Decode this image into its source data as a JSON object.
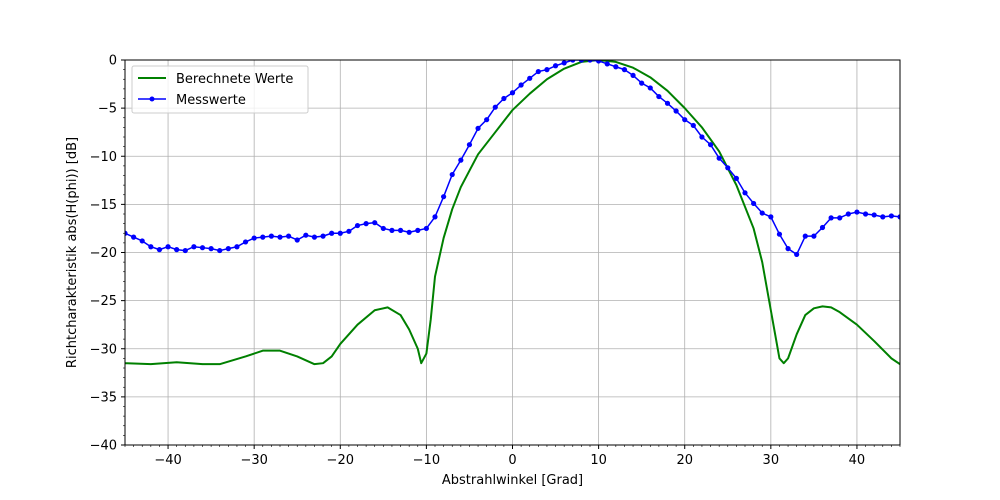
{
  "chart_data": {
    "type": "line",
    "title": "",
    "xlabel": "Abstrahlwinkel [Grad]",
    "ylabel": "Richtcharakteristik abs(H(phi)) [dB]",
    "xlim": [
      -45,
      45
    ],
    "ylim": [
      -40,
      0
    ],
    "xticks": [
      -40,
      -30,
      -20,
      -10,
      0,
      10,
      20,
      30,
      40
    ],
    "xtick_labels": [
      "−40",
      "−30",
      "−20",
      "−10",
      "0",
      "10",
      "20",
      "30",
      "40"
    ],
    "yticks": [
      0,
      -5,
      -10,
      -15,
      -20,
      -25,
      -30,
      -35,
      -40
    ],
    "ytick_labels": [
      "0",
      "−5",
      "−10",
      "−15",
      "−20",
      "−25",
      "−30",
      "−35",
      "−40"
    ],
    "grid": true,
    "legend_position": "top-left",
    "series": [
      {
        "name": "Berechnete Werte",
        "color": "#008000",
        "marker": "none",
        "x": [
          -45,
          -42,
          -39,
          -36,
          -34,
          -31,
          -29,
          -27,
          -25,
          -23,
          -22,
          -21,
          -20,
          -18,
          -16,
          -14.5,
          -13,
          -12,
          -11,
          -10.6,
          -10,
          -9.5,
          -9,
          -8,
          -7,
          -6,
          -5,
          -4,
          -2,
          0,
          2,
          4,
          6,
          8,
          10,
          12,
          14,
          16,
          18,
          20,
          22,
          24,
          26,
          28,
          29,
          30,
          30.5,
          31,
          31.5,
          32,
          33,
          34,
          35,
          36,
          37,
          38,
          40,
          42,
          44,
          45
        ],
        "y": [
          -31.5,
          -31.6,
          -31.4,
          -31.6,
          -31.6,
          -30.8,
          -30.2,
          -30.2,
          -30.8,
          -31.6,
          -31.5,
          -30.8,
          -29.5,
          -27.5,
          -26,
          -25.7,
          -26.5,
          -28,
          -30,
          -31.5,
          -30.5,
          -27,
          -22.5,
          -18.5,
          -15.5,
          -13.2,
          -11.5,
          -9.8,
          -7.5,
          -5.2,
          -3.5,
          -2,
          -0.9,
          -0.2,
          0,
          -0.2,
          -0.8,
          -1.8,
          -3.2,
          -5,
          -7,
          -9.5,
          -13,
          -17.5,
          -21,
          -26,
          -28.5,
          -31,
          -31.5,
          -31,
          -28.5,
          -26.5,
          -25.8,
          -25.6,
          -25.7,
          -26.2,
          -27.5,
          -29.2,
          -31,
          -31.6
        ]
      },
      {
        "name": "Messwerte",
        "color": "#0000ff",
        "marker": "circle",
        "x": [
          -45,
          -44,
          -43,
          -42,
          -41,
          -40,
          -39,
          -38,
          -37,
          -36,
          -35,
          -34,
          -33,
          -32,
          -31,
          -30,
          -29,
          -28,
          -27,
          -26,
          -25,
          -24,
          -23,
          -22,
          -21,
          -20,
          -19,
          -18,
          -17,
          -16,
          -15,
          -14,
          -13,
          -12,
          -11,
          -10,
          -9,
          -8,
          -7,
          -6,
          -5,
          -4,
          -3,
          -2,
          -1,
          0,
          1,
          2,
          3,
          4,
          5,
          6,
          7,
          8,
          9,
          10,
          11,
          12,
          13,
          14,
          15,
          16,
          17,
          18,
          19,
          20,
          21,
          22,
          23,
          24,
          25,
          26,
          27,
          28,
          29,
          30,
          31,
          32,
          33,
          34,
          35,
          36,
          37,
          38,
          39,
          40,
          41,
          42,
          43,
          44,
          45
        ],
        "y": [
          -18,
          -18.4,
          -18.8,
          -19.4,
          -19.7,
          -19.4,
          -19.7,
          -19.8,
          -19.4,
          -19.5,
          -19.6,
          -19.8,
          -19.6,
          -19.4,
          -18.9,
          -18.5,
          -18.4,
          -18.3,
          -18.4,
          -18.3,
          -18.7,
          -18.2,
          -18.4,
          -18.3,
          -18,
          -18,
          -17.8,
          -17.2,
          -17,
          -16.9,
          -17.5,
          -17.7,
          -17.7,
          -17.9,
          -17.7,
          -17.5,
          -16.3,
          -14.2,
          -11.9,
          -10.4,
          -8.8,
          -7.1,
          -6.2,
          -4.9,
          -4,
          -3.4,
          -2.6,
          -1.9,
          -1.2,
          -1,
          -0.6,
          -0.3,
          0,
          0,
          0,
          -0.1,
          -0.4,
          -0.7,
          -1,
          -1.6,
          -2.4,
          -2.9,
          -3.8,
          -4.5,
          -5.3,
          -6.2,
          -6.8,
          -8,
          -8.8,
          -10.2,
          -11.2,
          -12.3,
          -13.8,
          -14.9,
          -15.9,
          -16.3,
          -18.1,
          -19.6,
          -20.2,
          -18.3,
          -18.3,
          -17.4,
          -16.4,
          -16.4,
          -16,
          -15.8,
          -16,
          -16.1,
          -16.3,
          -16.2,
          -16.3
        ]
      }
    ]
  }
}
